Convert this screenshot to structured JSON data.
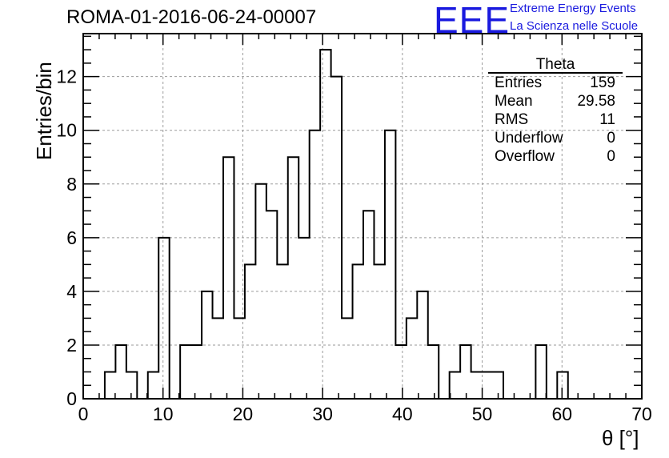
{
  "title": "ROMA-01-2016-06-24-00007",
  "brand": {
    "logo": "EEE",
    "line1": "Extreme Energy Events",
    "line2": "La Scienza nelle Scuole"
  },
  "stats_box": {
    "title": "Theta",
    "rows": [
      {
        "label": "Entries",
        "value": "159"
      },
      {
        "label": "Mean",
        "value": "29.58"
      },
      {
        "label": "RMS",
        "value": "11"
      },
      {
        "label": "Underflow",
        "value": "0"
      },
      {
        "label": "Overflow",
        "value": "0"
      }
    ]
  },
  "chart_data": {
    "type": "bar",
    "histogram": true,
    "xlabel": "θ [°]",
    "ylabel": "Entries/bin",
    "xlim": [
      0,
      70
    ],
    "ylim": [
      0,
      13.6
    ],
    "x_ticks": [
      "0",
      "10",
      "20",
      "30",
      "40",
      "50",
      "60",
      "70"
    ],
    "y_ticks": [
      "0",
      "2",
      "4",
      "6",
      "8",
      "10",
      "12"
    ],
    "grid": true,
    "line_color": "#000000",
    "grid_color": "#9a9a9a",
    "bin_width": 1.35,
    "bin_starts": [
      2.7,
      4.05,
      5.4,
      6.75,
      8.1,
      9.45,
      10.8,
      12.15,
      13.5,
      14.85,
      16.2,
      17.55,
      18.9,
      20.25,
      21.6,
      22.95,
      24.3,
      25.65,
      27.0,
      28.35,
      29.7,
      31.05,
      32.4,
      33.75,
      35.1,
      36.45,
      37.8,
      39.15,
      40.5,
      41.85,
      43.2,
      44.55,
      45.9,
      47.25,
      48.6,
      49.95,
      51.3,
      52.65,
      54.0,
      55.35,
      56.7,
      58.05,
      59.4,
      60.75
    ],
    "values": [
      1,
      2,
      1,
      0,
      1,
      6,
      0,
      2,
      2,
      4,
      3,
      9,
      3,
      5,
      8,
      7,
      5,
      9,
      6,
      10,
      13,
      12,
      3,
      5,
      7,
      5,
      10,
      2,
      3,
      4,
      2,
      0,
      1,
      2,
      1,
      1,
      1,
      0,
      0,
      0,
      2,
      0,
      1,
      0
    ]
  }
}
